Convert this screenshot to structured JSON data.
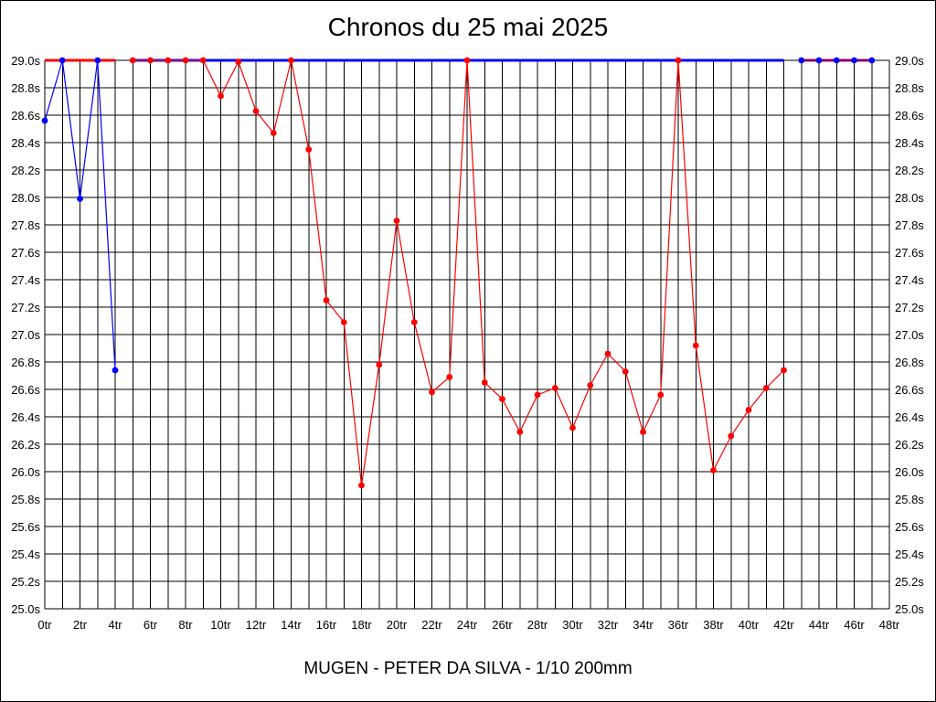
{
  "chart_data": {
    "type": "line",
    "title": "Chronos du 25 mai 2025",
    "subtitle": "MUGEN - PETER DA SILVA - 1/10 200mm",
    "xlabel": "",
    "ylabel": "",
    "xlim": [
      0,
      48
    ],
    "ylim": [
      25.0,
      29.0
    ],
    "x_ticks": [
      "0tr",
      "2tr",
      "4tr",
      "6tr",
      "8tr",
      "10tr",
      "12tr",
      "14tr",
      "16tr",
      "18tr",
      "20tr",
      "22tr",
      "24tr",
      "26tr",
      "28tr",
      "30tr",
      "32tr",
      "34tr",
      "36tr",
      "38tr",
      "40tr",
      "42tr",
      "44tr",
      "46tr",
      "48tr"
    ],
    "y_ticks": [
      "25.0s",
      "25.2s",
      "25.4s",
      "25.6s",
      "25.8s",
      "26.0s",
      "26.2s",
      "26.4s",
      "26.6s",
      "26.8s",
      "27.0s",
      "27.2s",
      "27.4s",
      "27.6s",
      "27.8s",
      "28.0s",
      "28.2s",
      "28.4s",
      "28.6s",
      "28.8s",
      "29.0s"
    ],
    "grid": true,
    "series": [
      {
        "color": "#0000ff",
        "x": [
          0,
          1,
          2,
          3,
          4
        ],
        "values": [
          28.56,
          29.0,
          27.99,
          29.0,
          26.74
        ]
      },
      {
        "color": "#ff0000",
        "x": [
          5,
          6,
          7,
          8,
          9,
          10,
          11,
          12,
          13,
          14,
          15,
          16,
          17,
          18,
          19,
          20,
          21,
          22,
          23,
          24,
          25,
          26,
          27,
          28,
          29,
          30,
          31,
          32,
          33,
          34,
          35,
          36,
          37,
          38,
          39,
          40,
          41,
          42
        ],
        "values": [
          29.0,
          29.0,
          29.0,
          29.0,
          29.0,
          28.74,
          28.99,
          28.63,
          28.47,
          29.0,
          28.35,
          27.25,
          27.09,
          25.9,
          26.78,
          27.83,
          27.09,
          26.58,
          26.69,
          29.0,
          26.65,
          26.53,
          26.29,
          26.56,
          26.61,
          26.32,
          26.63,
          26.86,
          26.73,
          26.29,
          26.56,
          29.0,
          26.92,
          26.01,
          26.26,
          26.45,
          26.61,
          26.74
        ]
      },
      {
        "color": "#0000ff",
        "x": [
          43,
          44,
          45,
          46,
          47
        ],
        "values": [
          29.0,
          29.0,
          29.0,
          29.0,
          29.0
        ]
      }
    ],
    "reference_lines": [
      {
        "y": 29.0,
        "x_range": [
          0,
          4
        ],
        "color": "#ff0000"
      },
      {
        "y": 29.0,
        "x_range": [
          5,
          42
        ],
        "color": "#0000ff"
      },
      {
        "y": 29.0,
        "x_range": [
          43,
          47
        ],
        "color": "#ff0000"
      }
    ]
  }
}
